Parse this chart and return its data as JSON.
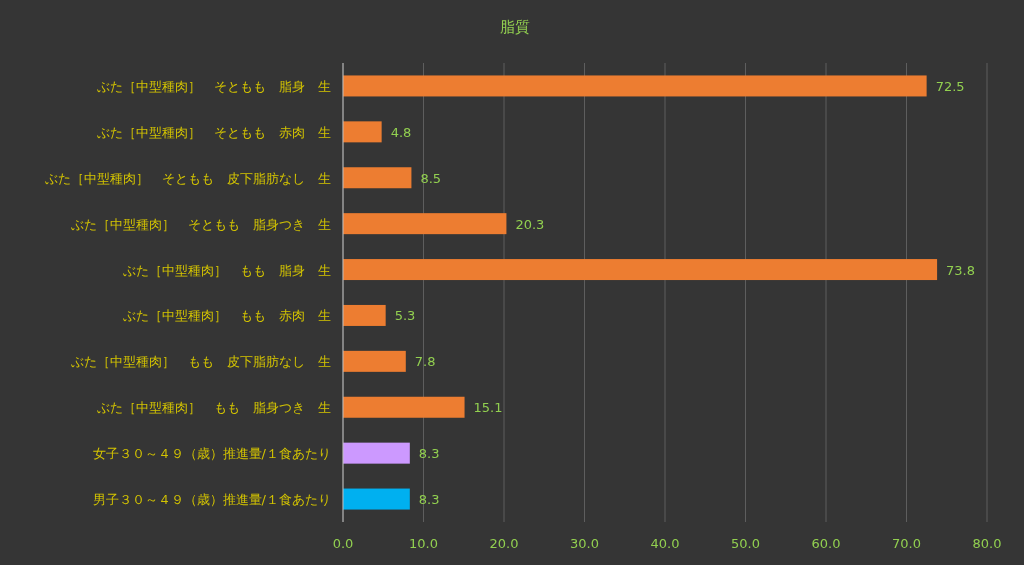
{
  "chart_data": {
    "type": "bar",
    "orientation": "horizontal",
    "title": "脂質",
    "categories": [
      "ぶた［中型種肉］　そともも　脂身　生",
      "ぶた［中型種肉］　そともも　赤肉　生",
      "ぶた［中型種肉］　そともも　皮下脂肪なし　生",
      "ぶた［中型種肉］　そともも　脂身つき　生",
      "ぶた［中型種肉］　もも　脂身　生",
      "ぶた［中型種肉］　もも　赤肉　生",
      "ぶた［中型種肉］　もも　皮下脂肪なし　生",
      "ぶた［中型種肉］　もも　脂身つき　生",
      "女子３０～４９（歳）推進量/１食あたり",
      "男子３０～４９（歳）推進量/１食あたり"
    ],
    "values": [
      72.5,
      4.8,
      8.5,
      20.3,
      73.8,
      5.3,
      7.8,
      15.1,
      8.3,
      8.3
    ],
    "colors": [
      "#ed7d31",
      "#ed7d31",
      "#ed7d31",
      "#ed7d31",
      "#ed7d31",
      "#ed7d31",
      "#ed7d31",
      "#ed7d31",
      "#cc99ff",
      "#00b0f0"
    ],
    "xlim": [
      0,
      80
    ],
    "xticks": [
      {
        "value": 0,
        "label": "0.0"
      },
      {
        "value": 10,
        "label": "10.0"
      },
      {
        "value": 20,
        "label": "20.0"
      },
      {
        "value": 30,
        "label": "30.0"
      },
      {
        "value": 40,
        "label": "40.0"
      },
      {
        "value": 50,
        "label": "50.0"
      },
      {
        "value": 60,
        "label": "60.0"
      },
      {
        "value": 70,
        "label": "70.0"
      },
      {
        "value": 80,
        "label": "80.0"
      }
    ],
    "grid": "x",
    "data_labels": true
  }
}
